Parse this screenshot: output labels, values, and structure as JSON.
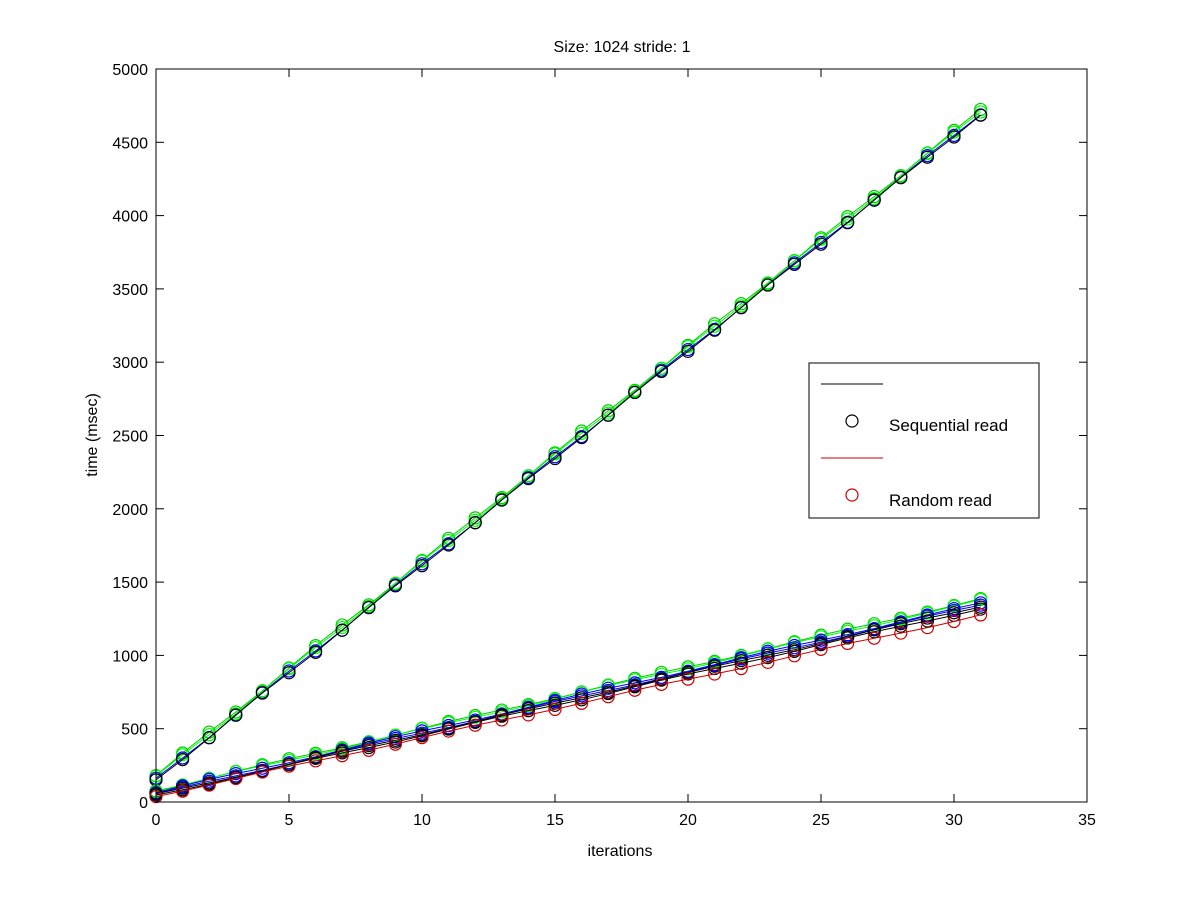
{
  "chart_data": {
    "type": "line",
    "title": "Size: 1024 stride: 1",
    "xlabel": "iterations",
    "ylabel": "time (msec)",
    "xlim": [
      0,
      35
    ],
    "ylim": [
      0,
      5000
    ],
    "xticks": [
      "0",
      "5",
      "10",
      "15",
      "20",
      "25",
      "30",
      "35"
    ],
    "yticks": [
      "0",
      "500",
      "1000",
      "1500",
      "2000",
      "2500",
      "3000",
      "3500",
      "4000",
      "4500",
      "5000"
    ],
    "grid": false,
    "legend_position": "right",
    "legend": [
      {
        "label": "",
        "style": "line",
        "color": "#000000"
      },
      {
        "label": "Sequential read",
        "style": "marker",
        "color": "#000000"
      },
      {
        "label": "",
        "style": "line",
        "color": "#cc0000"
      },
      {
        "label": "Random read",
        "style": "marker",
        "color": "#cc0000"
      }
    ],
    "series": [
      {
        "group": "upper",
        "color": "#00cc00",
        "start": 180,
        "end": 4720
      },
      {
        "group": "upper",
        "color": "#00ff00",
        "start": 170,
        "end": 4710
      },
      {
        "group": "upper",
        "color": "#0000ff",
        "start": 155,
        "end": 4695
      },
      {
        "group": "upper",
        "color": "#000000",
        "start": 150,
        "end": 4690
      },
      {
        "group": "lower",
        "color": "#00cc00",
        "start": 80,
        "end": 1385
      },
      {
        "group": "lower",
        "color": "#00ff00",
        "start": 75,
        "end": 1375
      },
      {
        "group": "lower",
        "color": "#0000ff",
        "start": 65,
        "end": 1355
      },
      {
        "group": "lower",
        "color": "#0000ff",
        "start": 55,
        "end": 1345
      },
      {
        "group": "lower",
        "color": "#000000",
        "start": 50,
        "end": 1335
      },
      {
        "group": "lower",
        "color": "#000000",
        "start": 45,
        "end": 1320
      },
      {
        "group": "lower",
        "color": "#cc0000",
        "start": 40,
        "end": 1275
      }
    ]
  }
}
